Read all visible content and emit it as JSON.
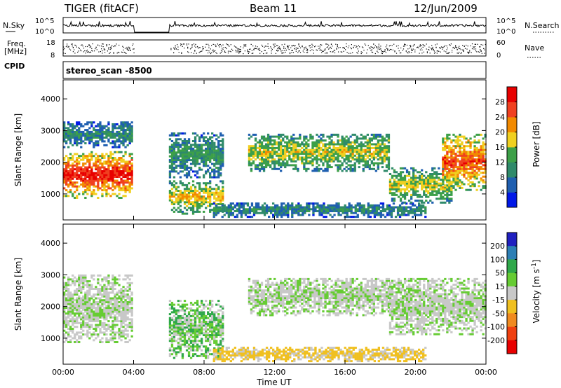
{
  "header": {
    "title": "TIGER (fitACF)",
    "beam": "Beam 11",
    "date": "12/Jun/2009"
  },
  "noise_panel": {
    "left_label": "N.Sky",
    "right_label": "N.Search",
    "left_ticks": [
      "10^5",
      "10^0"
    ],
    "right_ticks": [
      "10^5",
      "10^0"
    ]
  },
  "freq_panel": {
    "left_label_line1": "Freq.",
    "left_label_line2": "[MHz]",
    "left_ticks": [
      "18",
      "8"
    ],
    "right_label": "Nave",
    "right_ticks": [
      "60",
      "0"
    ]
  },
  "cpid": {
    "label": "CPID",
    "value": "stereo_scan -8500"
  },
  "colors": {
    "power": [
      "#0018e8",
      "#1f5fb0",
      "#2f8a6a",
      "#3da048",
      "#f0d020",
      "#f28a00",
      "#f04020",
      "#e80000"
    ],
    "velocity": [
      "#2020c0",
      "#2d7fb5",
      "#2fa84a",
      "#66cc33",
      "#c8c8c8",
      "#f0c020",
      "#f08a20",
      "#f04010",
      "#e80000"
    ]
  },
  "chart_data": [
    {
      "type": "heatmap",
      "title": "Power",
      "ylabel": "Slant Range [km]",
      "xlabel": "",
      "ylim": [
        180,
        4600
      ],
      "yticks": [
        "1000",
        "2000",
        "3000",
        "4000"
      ],
      "xticks": [
        "00:00",
        "04:00",
        "08:00",
        "12:00",
        "16:00",
        "20:00",
        "00:00"
      ],
      "data_gap_hours": [
        4.0,
        6.0
      ],
      "colorbar": {
        "label": "Power [dB]",
        "ticks": [
          "4",
          "8",
          "12",
          "16",
          "20",
          "24",
          "28"
        ]
      },
      "regions": [
        {
          "t": [
            0.0,
            4.0
          ],
          "r": [
            850,
            2300
          ],
          "level": 0.85
        },
        {
          "t": [
            0.0,
            4.0
          ],
          "r": [
            2450,
            3250
          ],
          "level": 0.3
        },
        {
          "t": [
            6.0,
            9.0
          ],
          "r": [
            350,
            1400
          ],
          "level": 0.55
        },
        {
          "t": [
            6.0,
            9.0
          ],
          "r": [
            1500,
            2900
          ],
          "level": 0.35
        },
        {
          "t": [
            10.5,
            18.5
          ],
          "r": [
            1700,
            2900
          ],
          "level": 0.5
        },
        {
          "t": [
            8.5,
            20.5
          ],
          "r": [
            250,
            700
          ],
          "level": 0.3
        },
        {
          "t": [
            18.5,
            22.0
          ],
          "r": [
            700,
            1800
          ],
          "level": 0.5
        },
        {
          "t": [
            21.5,
            24.0
          ],
          "r": [
            1100,
            2900
          ],
          "level": 0.75
        }
      ]
    },
    {
      "type": "heatmap",
      "title": "Velocity",
      "ylabel": "Slant Range [km]",
      "xlabel": "Time UT",
      "ylim": [
        180,
        4600
      ],
      "yticks": [
        "1000",
        "2000",
        "3000",
        "4000"
      ],
      "xticks": [
        "00:00",
        "04:00",
        "08:00",
        "12:00",
        "16:00",
        "20:00",
        "00:00"
      ],
      "data_gap_hours": [
        4.0,
        6.0
      ],
      "colorbar": {
        "label": "Velocity [m s^-1]",
        "ticks": [
          "200",
          "100",
          "50",
          "15",
          "-15",
          "-50",
          "-100",
          "-200"
        ]
      },
      "regions": [
        {
          "t": [
            0.0,
            4.0
          ],
          "r": [
            850,
            3000
          ],
          "level": 0.0
        },
        {
          "t": [
            6.0,
            9.0
          ],
          "r": [
            350,
            2200
          ],
          "level": 10.0
        },
        {
          "t": [
            10.5,
            18.5
          ],
          "r": [
            1700,
            2900
          ],
          "level": 0.0
        },
        {
          "t": [
            8.5,
            20.5
          ],
          "r": [
            250,
            700
          ],
          "level": -20.0
        },
        {
          "t": [
            18.5,
            24.0
          ],
          "r": [
            1100,
            2900
          ],
          "level": 0.0
        }
      ]
    }
  ]
}
